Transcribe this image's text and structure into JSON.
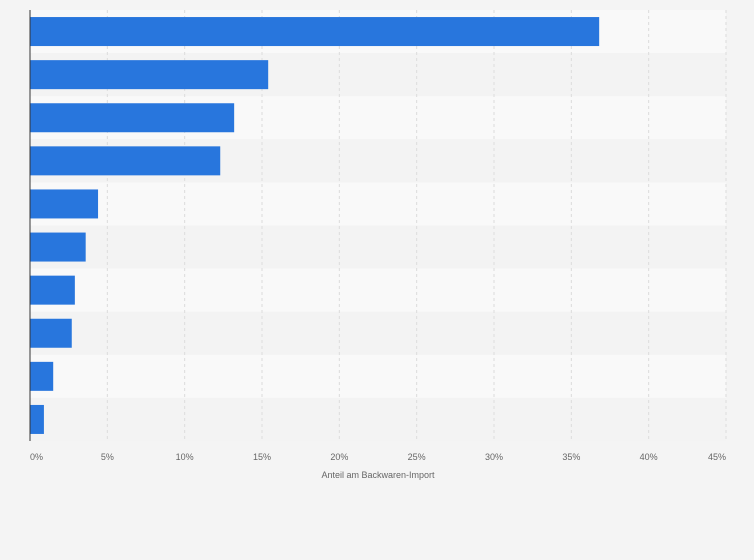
{
  "chart_data": {
    "type": "bar",
    "orientation": "horizontal",
    "title": "",
    "xlabel": "Anteil am Backwaren-Import",
    "ylabel": "",
    "xlim": [
      0,
      45
    ],
    "x_ticks": [
      "0%",
      "5%",
      "10%",
      "15%",
      "20%",
      "25%",
      "30%",
      "35%",
      "40%",
      "45%"
    ],
    "x_tick_values": [
      0,
      5,
      10,
      15,
      20,
      25,
      30,
      35,
      40,
      45
    ],
    "categories": [
      "",
      "",
      "",
      "",
      "",
      "",
      "",
      "",
      "",
      ""
    ],
    "values": [
      36.8,
      15.4,
      13.2,
      12.3,
      4.4,
      3.6,
      2.9,
      2.7,
      1.5,
      0.9
    ],
    "grid": true,
    "legend": "none",
    "colors": {
      "bar": "#2876dd",
      "band_light": "#f9f9f9",
      "band_dark": "#f3f3f3",
      "grid": "#dcdcdc",
      "axis": "#333333",
      "text": "#666666",
      "background": "#f4f4f4"
    }
  }
}
